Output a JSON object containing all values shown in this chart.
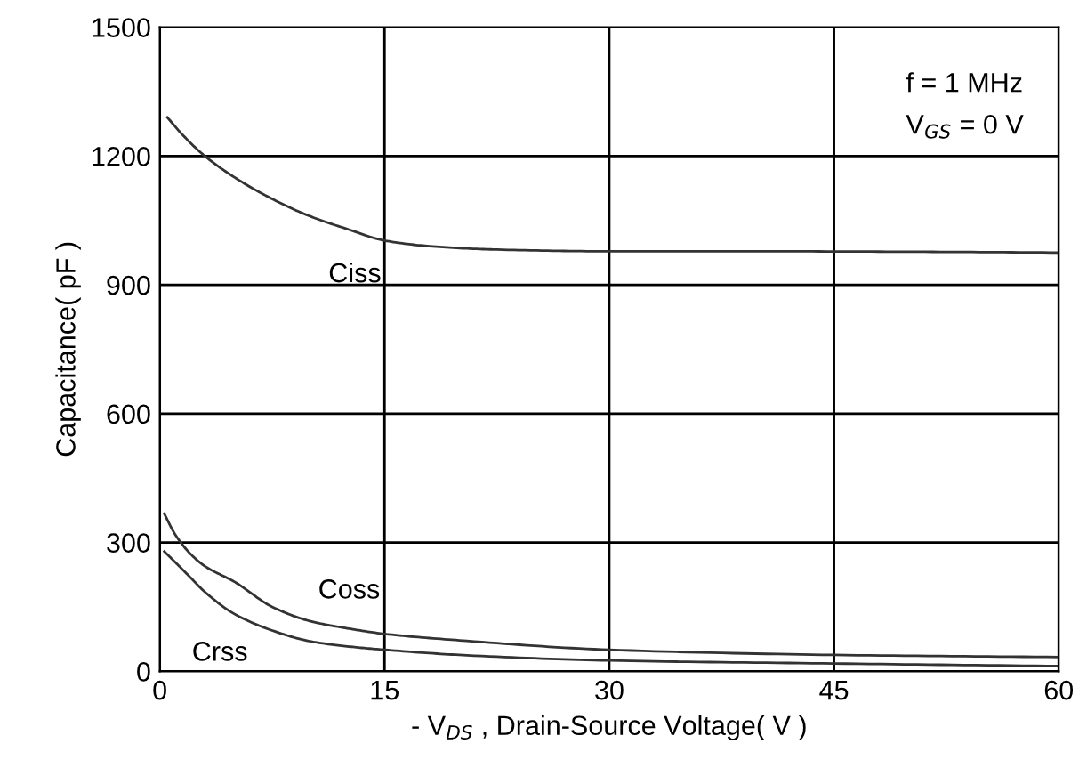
{
  "chart_data": {
    "type": "line",
    "xlabel": "- V$_{DS}$ , Drain-Source Voltage( V )",
    "ylabel": "Capacitance( pF )",
    "xlim": [
      0,
      60
    ],
    "ylim": [
      0,
      1500
    ],
    "xticks": [
      0,
      15,
      30,
      45,
      60
    ],
    "yticks": [
      0,
      300,
      600,
      900,
      1200,
      1500
    ],
    "grid": true,
    "legend": false,
    "annotations": [
      "f = 1 MHz",
      "V$_{GS}$ = 0 V"
    ],
    "series": [
      {
        "name": "Ciss",
        "color": "#333333",
        "x": [
          0.5,
          1.5,
          3,
          5,
          7.5,
          10,
          12.5,
          15,
          18,
          22.5,
          30,
          40,
          50,
          60
        ],
        "values": [
          1290,
          1250,
          1200,
          1150,
          1100,
          1060,
          1030,
          1003,
          990,
          982,
          978,
          978,
          977,
          975
        ]
      },
      {
        "name": "Coss",
        "color": "#333333",
        "x": [
          0.3,
          1,
          2,
          3,
          5,
          7.5,
          10,
          12.5,
          15,
          20,
          30,
          45,
          60
        ],
        "values": [
          367,
          320,
          275,
          245,
          208,
          150,
          117,
          100,
          87,
          72,
          50,
          38,
          33
        ]
      },
      {
        "name": "Crss",
        "color": "#333333",
        "x": [
          0.3,
          1,
          2,
          3,
          5,
          7.5,
          10,
          12.5,
          15,
          20,
          30,
          45,
          60
        ],
        "values": [
          279,
          255,
          220,
          185,
          133,
          95,
          70,
          58,
          50,
          38,
          25,
          18,
          12
        ]
      }
    ]
  }
}
